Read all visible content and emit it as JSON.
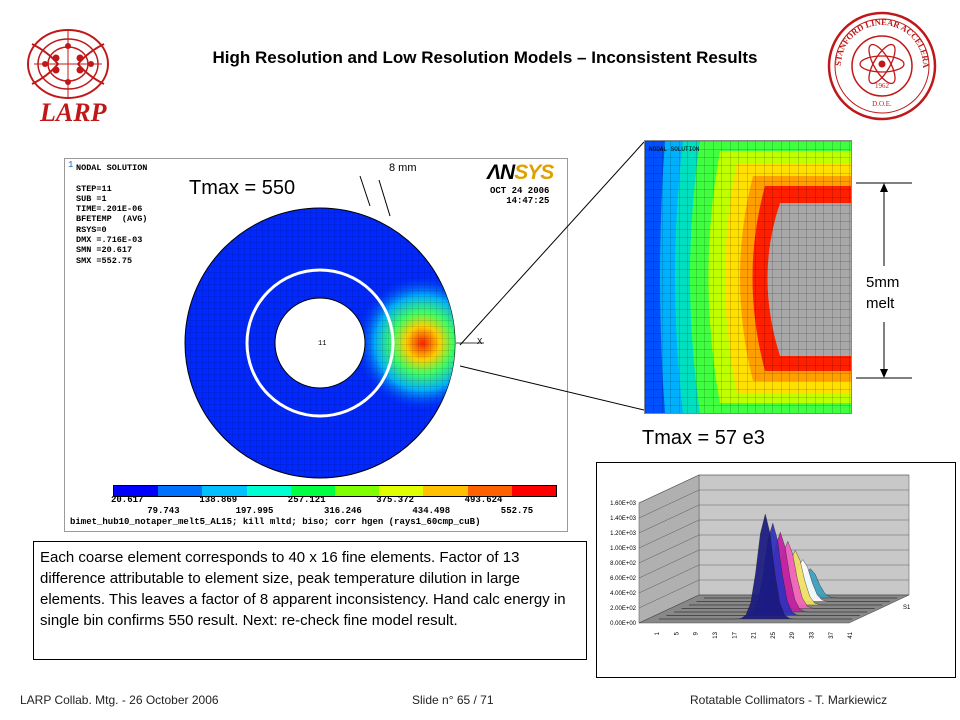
{
  "header": {
    "title": "High Resolution and Low Resolution Models – Inconsistent Results",
    "larp_logo_text": "LARP",
    "slac_seal_text": "STANFORD LINEAR ACCELERATOR CENTER",
    "slac_seal_year": "1962",
    "slac_seal_doe": "D.O.E."
  },
  "ansys_panel": {
    "corner_number": "1",
    "nodal_info": "NODAL SOLUTION\n\nSTEP=11\nSUB =1\nTIME=.201E-06\nBFETEMP  (AVG)\nRSYS=0\nDMX =.716E-03\nSMN =20.617\nSMX =552.75",
    "logo_an": "ΛN",
    "logo_sys": "SYS",
    "date_line1": "OCT 24 2006",
    "date_line2": "14:47:25",
    "tmax_label": "Tmax = 550",
    "dim_label": "8 mm",
    "axis_label_x": "X",
    "colorbar_low": [
      "20.617",
      "138.869",
      "257.121",
      "375.372",
      "493.624"
    ],
    "colorbar_high": [
      "79.743",
      "197.995",
      "316.246",
      "434.498",
      "552.75"
    ],
    "colorbar_colors": [
      "#0000ff",
      "#0070ff",
      "#00c0ff",
      "#00ffd0",
      "#00ff40",
      "#80ff00",
      "#e0ff00",
      "#ffc000",
      "#ff6000",
      "#ff0000"
    ],
    "filename": "bimet_hub10_notaper_melt5_AL15; kill mltd; biso; corr hgen (rays1_60cmp_cuB)"
  },
  "zoom_panel": {
    "header_text": "NODAL SOLUTION",
    "melt_label_line1": "5mm",
    "melt_label_line2": "melt",
    "tmax_label": "Tmax = 57 e3"
  },
  "note": {
    "text": "Each coarse element corresponds to 40 x 16 fine elements. Factor of 13 difference attributable to element size, peak temperature dilution in large elements.  This leaves a factor of 8 apparent inconsistency.  Hand calc energy in single bin confirms 550 result.  Next: re-check fine model result."
  },
  "chart_data": {
    "type": "surface",
    "title": "",
    "y_tick_labels": [
      "0.00E+00",
      "2.00E+02",
      "4.00E+02",
      "6.00E+02",
      "8.00E+02",
      "1.00E+03",
      "1.20E+03",
      "1.40E+03",
      "1.60E+03"
    ],
    "x_tick_labels": [
      "1",
      "5",
      "9",
      "13",
      "17",
      "21",
      "25",
      "29",
      "33",
      "37",
      "41"
    ],
    "depth_tick_label": "S1",
    "ylim": [
      0,
      1600
    ],
    "peak_value": 1400,
    "grid": true
  },
  "footer": {
    "left": "LARP Collab. Mtg.  - 26 October 2006",
    "middle": "Slide n° 65 / 71",
    "right": "Rotatable Collimators - T. Markiewicz"
  }
}
